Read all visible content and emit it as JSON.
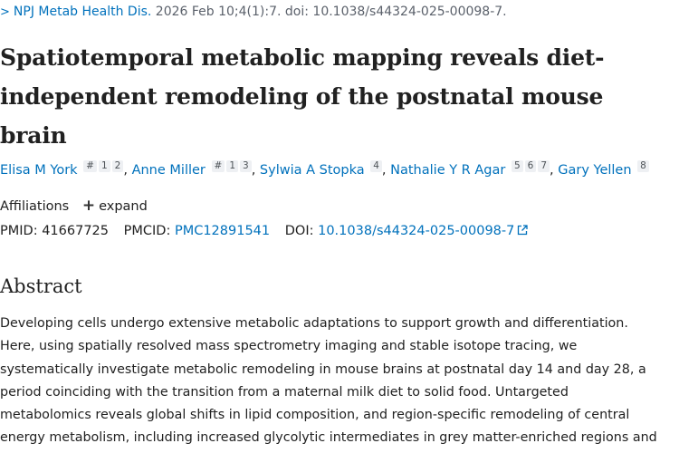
{
  "citation": {
    "journal": "NPJ Metab Health Dis.",
    "details": "2026 Feb 10;4(1):7. doi: 10.1038/s44324-025-00098-7."
  },
  "title_lines": [
    "Spatiotemporal metabolic mapping reveals diet-",
    "independent remodeling of the postnatal mouse",
    "brain"
  ],
  "authors": [
    {
      "name": "Elisa M York",
      "marks": [
        "#",
        "1",
        "2"
      ]
    },
    {
      "name": "Anne Miller",
      "marks": [
        "#",
        "1",
        "3"
      ]
    },
    {
      "name": "Sylwia A Stopka",
      "marks": [
        "4"
      ]
    },
    {
      "name": "Nathalie Y R Agar",
      "marks": [
        "5",
        "6",
        "7"
      ]
    },
    {
      "name": "Gary Yellen",
      "marks": [
        "8"
      ]
    }
  ],
  "affiliations": {
    "label": "Affiliations",
    "expand_label": "expand"
  },
  "identifiers": {
    "pmid_label": "PMID:",
    "pmid": "41667725",
    "pmcid_label": "PMCID:",
    "pmcid": "PMC12891541",
    "doi_label": "DOI:",
    "doi": "10.1038/s44324-025-00098-7"
  },
  "abstract": {
    "heading": "Abstract",
    "lines": [
      "Developing cells undergo extensive metabolic adaptations to support growth and differentiation.",
      "Here, using spatially resolved mass spectrometry imaging and stable isotope tracing, we",
      "systematically investigate metabolic remodeling in mouse brains at postnatal day 14 and day 28, a",
      "period coinciding with the transition from a maternal milk diet to solid food. Untargeted",
      "metabolomics reveals global shifts in lipid composition, and region-specific remodeling of central",
      "energy metabolism, including increased glycolytic intermediates in grey matter-enriched regions and"
    ]
  }
}
